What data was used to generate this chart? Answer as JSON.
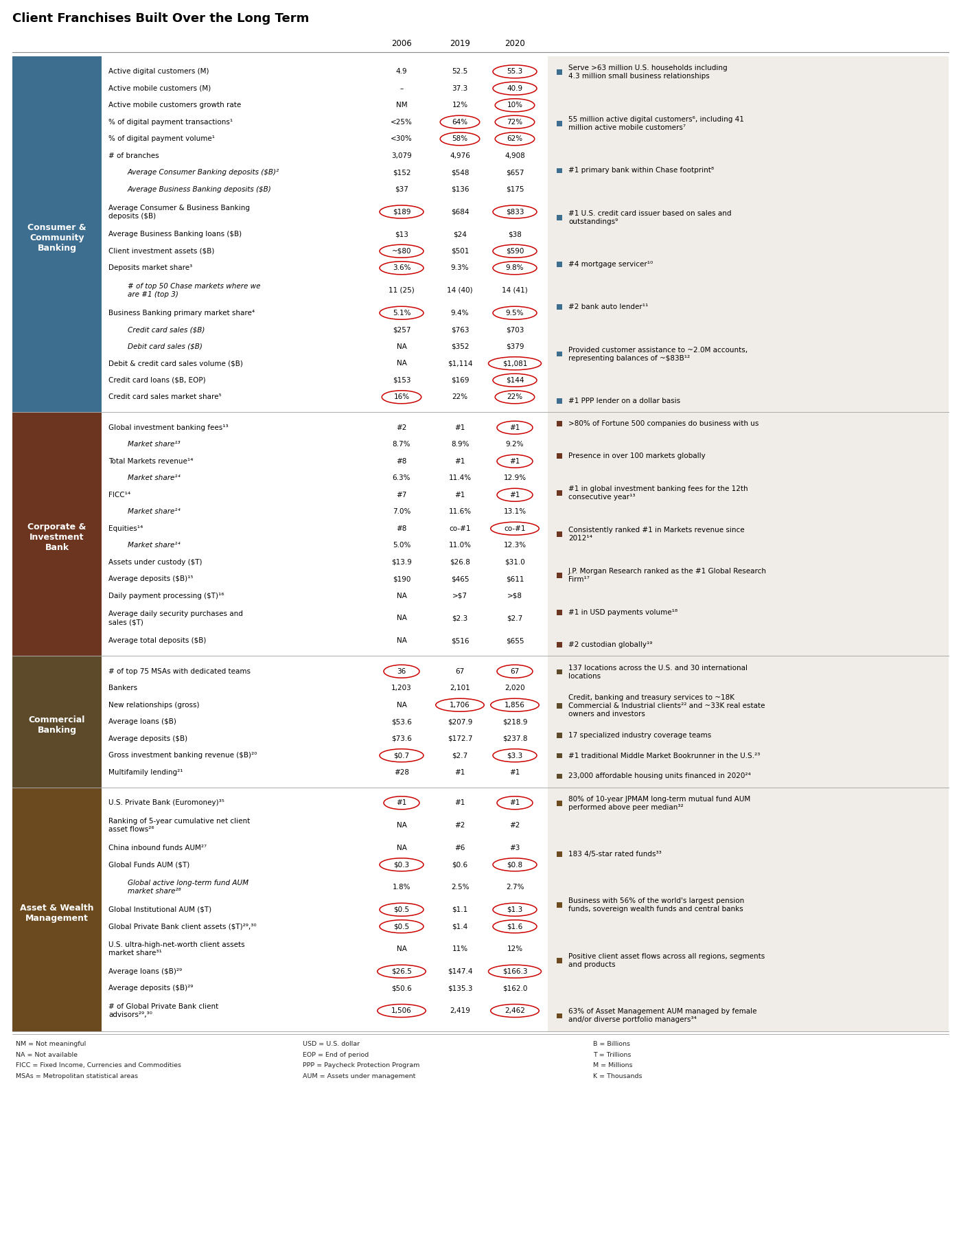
{
  "title": "Client Franchises Built Over the Long Term",
  "title_fontsize": 13,
  "background_color": "#ffffff",
  "right_panel_bg": "#f0ece8",
  "circle_color": "#cc0000",
  "sections": [
    {
      "label": "Consumer &\nCommunity\nBanking",
      "label_color": "#ffffff",
      "bg_color": "#3d6e8f",
      "rows": [
        {
          "text": "Active digital customers (M)",
          "c2006": "4.9",
          "c2019": "52.5",
          "c2020": "55.3",
          "circle": [
            false,
            false,
            true
          ],
          "indent": 0,
          "italic": false,
          "two_line": false
        },
        {
          "text": "Active mobile customers (M)",
          "c2006": "–",
          "c2019": "37.3",
          "c2020": "40.9",
          "circle": [
            false,
            false,
            true
          ],
          "indent": 0,
          "italic": false,
          "two_line": false
        },
        {
          "text": "Active mobile customers growth rate",
          "c2006": "NM",
          "c2019": "12%",
          "c2020": "10%",
          "circle": [
            false,
            false,
            true
          ],
          "indent": 0,
          "italic": false,
          "two_line": false
        },
        {
          "text": "% of digital payment transactions¹",
          "c2006": "<25%",
          "c2019": "64%",
          "c2020": "72%",
          "circle": [
            false,
            true,
            true
          ],
          "indent": 0,
          "italic": false,
          "two_line": false
        },
        {
          "text": "% of digital payment volume¹",
          "c2006": "<30%",
          "c2019": "58%",
          "c2020": "62%",
          "circle": [
            false,
            true,
            true
          ],
          "indent": 0,
          "italic": false,
          "two_line": false
        },
        {
          "text": "# of branches",
          "c2006": "3,079",
          "c2019": "4,976",
          "c2020": "4,908",
          "circle": [
            false,
            false,
            false
          ],
          "indent": 0,
          "italic": false,
          "two_line": false
        },
        {
          "text": "Average Consumer Banking deposits ($B)²",
          "c2006": "$152",
          "c2019": "$548",
          "c2020": "$657",
          "circle": [
            false,
            false,
            false
          ],
          "indent": 1,
          "italic": true,
          "two_line": false
        },
        {
          "text": "Average Business Banking deposits ($B)",
          "c2006": "$37",
          "c2019": "$136",
          "c2020": "$175",
          "circle": [
            false,
            false,
            false
          ],
          "indent": 1,
          "italic": true,
          "two_line": false
        },
        {
          "text": "Average Consumer & Business Banking\ndeposits ($B)",
          "c2006": "$189",
          "c2019": "$684",
          "c2020": "$833",
          "circle": [
            true,
            false,
            true
          ],
          "indent": 0,
          "italic": false,
          "two_line": true
        },
        {
          "text": "Average Business Banking loans ($B)",
          "c2006": "$13",
          "c2019": "$24",
          "c2020": "$38",
          "circle": [
            false,
            false,
            false
          ],
          "indent": 0,
          "italic": false,
          "two_line": false
        },
        {
          "text": "Client investment assets ($B)",
          "c2006": "~$80",
          "c2019": "$501",
          "c2020": "$590",
          "circle": [
            true,
            false,
            true
          ],
          "indent": 0,
          "italic": false,
          "two_line": false
        },
        {
          "text": "Deposits market share³",
          "c2006": "3.6%",
          "c2019": "9.3%",
          "c2020": "9.8%",
          "circle": [
            true,
            false,
            true
          ],
          "indent": 0,
          "italic": false,
          "two_line": false
        },
        {
          "text": "# of top 50 Chase markets where we\nare #1 (top 3)",
          "c2006": "11 (25)",
          "c2019": "14 (40)",
          "c2020": "14 (41)",
          "circle": [
            false,
            false,
            false
          ],
          "indent": 1,
          "italic": true,
          "two_line": true
        },
        {
          "text": "Business Banking primary market share⁴",
          "c2006": "5.1%",
          "c2019": "9.4%",
          "c2020": "9.5%",
          "circle": [
            true,
            false,
            true
          ],
          "indent": 0,
          "italic": false,
          "two_line": false
        },
        {
          "text": "Credit card sales ($B)",
          "c2006": "$257",
          "c2019": "$763",
          "c2020": "$703",
          "circle": [
            false,
            false,
            false
          ],
          "indent": 1,
          "italic": true,
          "two_line": false
        },
        {
          "text": "Debit card sales ($B)",
          "c2006": "NA",
          "c2019": "$352",
          "c2020": "$379",
          "circle": [
            false,
            false,
            false
          ],
          "indent": 1,
          "italic": true,
          "two_line": false
        },
        {
          "text": "Debit & credit card sales volume ($B)",
          "c2006": "NA",
          "c2019": "$1,114",
          "c2020": "$1,081",
          "circle": [
            false,
            false,
            true
          ],
          "indent": 0,
          "italic": false,
          "two_line": false
        },
        {
          "text": "Credit card loans ($B, EOP)",
          "c2006": "$153",
          "c2019": "$169",
          "c2020": "$144",
          "circle": [
            false,
            false,
            true
          ],
          "indent": 0,
          "italic": false,
          "two_line": false
        },
        {
          "text": "Credit card sales market share⁵",
          "c2006": "16%",
          "c2019": "22%",
          "c2020": "22%",
          "circle": [
            true,
            false,
            true
          ],
          "indent": 0,
          "italic": false,
          "two_line": false
        }
      ],
      "bullets": [
        "Serve >63 million U.S. households including\n4.3 million small business relationships",
        "55 million active digital customers⁶, including 41\nmillion active mobile customers⁷",
        "#1 primary bank within Chase footprint⁸",
        "#1 U.S. credit card issuer based on sales and\noutstandings⁹",
        "#4 mortgage servicer¹⁰",
        "#2 bank auto lender¹¹",
        "Provided customer assistance to ~2.0M accounts,\nrepresenting balances of ~$83B¹²",
        "#1 PPP lender on a dollar basis"
      ]
    },
    {
      "label": "Corporate &\nInvestment\nBank",
      "label_color": "#ffffff",
      "bg_color": "#6b3520",
      "rows": [
        {
          "text": "Global investment banking fees¹³",
          "c2006": "#2",
          "c2019": "#1",
          "c2020": "#1",
          "circle": [
            false,
            false,
            true
          ],
          "indent": 0,
          "italic": false,
          "two_line": false
        },
        {
          "text": "Market share¹³",
          "c2006": "8.7%",
          "c2019": "8.9%",
          "c2020": "9.2%",
          "circle": [
            false,
            false,
            false
          ],
          "indent": 1,
          "italic": true,
          "two_line": false
        },
        {
          "text": "Total Markets revenue¹⁴",
          "c2006": "#8",
          "c2019": "#1",
          "c2020": "#1",
          "circle": [
            false,
            false,
            true
          ],
          "indent": 0,
          "italic": false,
          "two_line": false
        },
        {
          "text": "Market share¹⁴",
          "c2006": "6.3%",
          "c2019": "11.4%",
          "c2020": "12.9%",
          "circle": [
            false,
            false,
            false
          ],
          "indent": 1,
          "italic": true,
          "two_line": false
        },
        {
          "text": "FICC¹⁴",
          "c2006": "#7",
          "c2019": "#1",
          "c2020": "#1",
          "circle": [
            false,
            false,
            true
          ],
          "indent": 0,
          "italic": false,
          "two_line": false
        },
        {
          "text": "Market share¹⁴",
          "c2006": "7.0%",
          "c2019": "11.6%",
          "c2020": "13.1%",
          "circle": [
            false,
            false,
            false
          ],
          "indent": 1,
          "italic": true,
          "two_line": false
        },
        {
          "text": "Equities¹⁴",
          "c2006": "#8",
          "c2019": "co-#1",
          "c2020": "co-#1",
          "circle": [
            false,
            false,
            true
          ],
          "indent": 0,
          "italic": false,
          "two_line": false
        },
        {
          "text": "Market share¹⁴",
          "c2006": "5.0%",
          "c2019": "11.0%",
          "c2020": "12.3%",
          "circle": [
            false,
            false,
            false
          ],
          "indent": 1,
          "italic": true,
          "two_line": false
        },
        {
          "text": "Assets under custody ($T)",
          "c2006": "$13.9",
          "c2019": "$26.8",
          "c2020": "$31.0",
          "circle": [
            false,
            false,
            false
          ],
          "indent": 0,
          "italic": false,
          "two_line": false
        },
        {
          "text": "Average deposits ($B)¹⁵",
          "c2006": "$190",
          "c2019": "$465",
          "c2020": "$611",
          "circle": [
            false,
            false,
            false
          ],
          "indent": 0,
          "italic": false,
          "two_line": false
        },
        {
          "text": "Daily payment processing ($T)¹⁶",
          "c2006": "NA",
          "c2019": ">$7",
          "c2020": ">$8",
          "circle": [
            false,
            false,
            false
          ],
          "indent": 0,
          "italic": false,
          "two_line": false
        },
        {
          "text": "Average daily security purchases and\nsales ($T)",
          "c2006": "NA",
          "c2019": "$2.3",
          "c2020": "$2.7",
          "circle": [
            false,
            false,
            false
          ],
          "indent": 0,
          "italic": false,
          "two_line": true
        },
        {
          "text": "Average total deposits ($B)",
          "c2006": "NA",
          "c2019": "$516",
          "c2020": "$655",
          "circle": [
            false,
            false,
            false
          ],
          "indent": 0,
          "italic": false,
          "two_line": false
        }
      ],
      "bullets": [
        ">80% of Fortune 500 companies do business with us",
        "Presence in over 100 markets globally",
        "#1 in global investment banking fees for the 12th\nconsecutive year¹³",
        "Consistently ranked #1 in Markets revenue since\n2012¹⁴",
        "J.P. Morgan Research ranked as the #1 Global Research\nFirm¹⁷",
        "#1 in USD payments volume¹⁸",
        "#2 custodian globally¹⁹"
      ]
    },
    {
      "label": "Commercial\nBanking",
      "label_color": "#ffffff",
      "bg_color": "#5c4a2a",
      "rows": [
        {
          "text": "# of top 75 MSAs with dedicated teams",
          "c2006": "36",
          "c2019": "67",
          "c2020": "67",
          "circle": [
            true,
            false,
            true
          ],
          "indent": 0,
          "italic": false,
          "two_line": false
        },
        {
          "text": "Bankers",
          "c2006": "1,203",
          "c2019": "2,101",
          "c2020": "2,020",
          "circle": [
            false,
            false,
            false
          ],
          "indent": 0,
          "italic": false,
          "two_line": false
        },
        {
          "text": "New relationships (gross)",
          "c2006": "NA",
          "c2019": "1,706",
          "c2020": "1,856",
          "circle": [
            false,
            true,
            true
          ],
          "indent": 0,
          "italic": false,
          "two_line": false
        },
        {
          "text": "Average loans ($B)",
          "c2006": "$53.6",
          "c2019": "$207.9",
          "c2020": "$218.9",
          "circle": [
            false,
            false,
            false
          ],
          "indent": 0,
          "italic": false,
          "two_line": false
        },
        {
          "text": "Average deposits ($B)",
          "c2006": "$73.6",
          "c2019": "$172.7",
          "c2020": "$237.8",
          "circle": [
            false,
            false,
            false
          ],
          "indent": 0,
          "italic": false,
          "two_line": false
        },
        {
          "text": "Gross investment banking revenue ($B)²⁰",
          "c2006": "$0.7",
          "c2019": "$2.7",
          "c2020": "$3.3",
          "circle": [
            true,
            false,
            true
          ],
          "indent": 0,
          "italic": false,
          "two_line": false
        },
        {
          "text": "Multifamily lending²¹",
          "c2006": "#28",
          "c2019": "#1",
          "c2020": "#1",
          "circle": [
            false,
            false,
            false
          ],
          "indent": 0,
          "italic": false,
          "two_line": false
        }
      ],
      "bullets": [
        "137 locations across the U.S. and 30 international\nlocations",
        "Credit, banking and treasury services to ~18K\nCommercial & Industrial clients²² and ~33K real estate\nowners and investors",
        "17 specialized industry coverage teams",
        "#1 traditional Middle Market Bookrunner in the U.S.²³",
        "23,000 affordable housing units financed in 2020²⁴"
      ]
    },
    {
      "label": "Asset & Wealth\nManagement",
      "label_color": "#ffffff",
      "bg_color": "#6b4a20",
      "rows": [
        {
          "text": "U.S. Private Bank (Euromoney)³⁵",
          "c2006": "#1",
          "c2019": "#1",
          "c2020": "#1",
          "circle": [
            true,
            false,
            true
          ],
          "indent": 0,
          "italic": false,
          "two_line": false
        },
        {
          "text": "Ranking of 5-year cumulative net client\nasset flows²⁶",
          "c2006": "NA",
          "c2019": "#2",
          "c2020": "#2",
          "circle": [
            false,
            false,
            false
          ],
          "indent": 0,
          "italic": false,
          "two_line": true
        },
        {
          "text": "China inbound funds AUM²⁷",
          "c2006": "NA",
          "c2019": "#6",
          "c2020": "#3",
          "circle": [
            false,
            false,
            false
          ],
          "indent": 0,
          "italic": false,
          "two_line": false
        },
        {
          "text": "Global Funds AUM ($T)",
          "c2006": "$0.3",
          "c2019": "$0.6",
          "c2020": "$0.8",
          "circle": [
            true,
            false,
            true
          ],
          "indent": 0,
          "italic": false,
          "two_line": false
        },
        {
          "text": "Global active long-term fund AUM\nmarket share²⁸",
          "c2006": "1.8%",
          "c2019": "2.5%",
          "c2020": "2.7%",
          "circle": [
            false,
            false,
            false
          ],
          "indent": 1,
          "italic": true,
          "two_line": true
        },
        {
          "text": "Global Institutional AUM ($T)",
          "c2006": "$0.5",
          "c2019": "$1.1",
          "c2020": "$1.3",
          "circle": [
            true,
            false,
            true
          ],
          "indent": 0,
          "italic": false,
          "two_line": false
        },
        {
          "text": "Global Private Bank client assets ($T)²⁹,³⁰",
          "c2006": "$0.5",
          "c2019": "$1.4",
          "c2020": "$1.6",
          "circle": [
            true,
            false,
            true
          ],
          "indent": 0,
          "italic": false,
          "two_line": false
        },
        {
          "text": "U.S. ultra-high-net-worth client assets\nmarket share³¹",
          "c2006": "NA",
          "c2019": "11%",
          "c2020": "12%",
          "circle": [
            false,
            false,
            false
          ],
          "indent": 0,
          "italic": false,
          "two_line": true
        },
        {
          "text": "Average loans ($B)²⁹",
          "c2006": "$26.5",
          "c2019": "$147.4",
          "c2020": "$166.3",
          "circle": [
            true,
            false,
            true
          ],
          "indent": 0,
          "italic": false,
          "two_line": false
        },
        {
          "text": "Average deposits ($B)²⁹",
          "c2006": "$50.6",
          "c2019": "$135.3",
          "c2020": "$162.0",
          "circle": [
            false,
            false,
            false
          ],
          "indent": 0,
          "italic": false,
          "two_line": false
        },
        {
          "text": "# of Global Private Bank client\nadvisors²⁹,³⁰",
          "c2006": "1,506",
          "c2019": "2,419",
          "c2020": "2,462",
          "circle": [
            true,
            false,
            true
          ],
          "indent": 0,
          "italic": false,
          "two_line": true
        }
      ],
      "bullets": [
        "80% of 10-year JPMAM long-term mutual fund AUM\nperformed above peer median³²",
        "183 4/5-star rated funds³³",
        "Business with 56% of the world's largest pension\nfunds, sovereign wealth funds and central banks",
        "Positive client asset flows across all regions, segments\nand products",
        "63% of Asset Management AUM managed by female\nand/or diverse portfolio managers³⁴"
      ]
    }
  ],
  "footer_lines": [
    [
      "NM = Not meaningful",
      "USD = U.S. dollar",
      "B = Billions"
    ],
    [
      "NA = Not available",
      "EOP = End of period",
      "T = Trillions"
    ],
    [
      "FICC = Fixed Income, Currencies and Commodities",
      "PPP = Paycheck Protection Program",
      "M = Millions"
    ],
    [
      "MSAs = Metropolitan statistical areas",
      "AUM = Assets under management",
      "K = Thousands"
    ]
  ]
}
